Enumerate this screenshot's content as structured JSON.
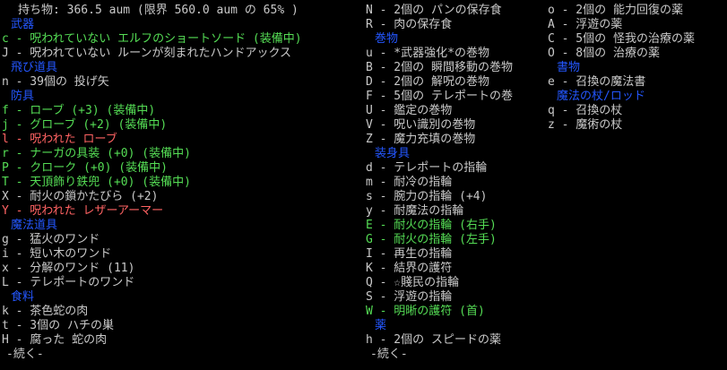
{
  "palette": {
    "background": "#000000",
    "item_text": "#c9c9c9",
    "category_header": "#2457ff",
    "equipped_item": "#55dd55",
    "cursed_item": "#ff6363"
  },
  "inventory": {
    "title": "持ち物: 366.5 aum (限界 560.0 aum の 65% )",
    "weight_current": "366.5",
    "weight_limit": "560.0",
    "weight_percent": "65%",
    "more_label": "-続く-",
    "columns": [
      {
        "name": "left",
        "lines": [
          {
            "kind": "title",
            "text": "持ち物: 366.5 aum (限界 560.0 aum の 65% )"
          },
          {
            "kind": "header",
            "text": "武器"
          },
          {
            "kind": "equipped",
            "text": "c - 呪われていない エルフのショートソード (装備中)"
          },
          {
            "kind": "item",
            "text": "J - 呪われていない ルーンが刻まれたハンドアックス"
          },
          {
            "kind": "header",
            "text": "飛び道具"
          },
          {
            "kind": "item",
            "text": "n - 39個の 投げ矢"
          },
          {
            "kind": "header",
            "text": "防具"
          },
          {
            "kind": "equipped",
            "text": "f - ローブ (+3) (装備中)"
          },
          {
            "kind": "equipped",
            "text": "j - グローブ (+2) (装備中)"
          },
          {
            "kind": "cursed",
            "text": "l - 呪われた ローブ"
          },
          {
            "kind": "equipped",
            "text": "r - ナーガの具装 (+0) (装備中)"
          },
          {
            "kind": "equipped",
            "text": "P - クローク (+0) (装備中)"
          },
          {
            "kind": "equipped",
            "text": "T - 天頂飾り鉄兜 (+0) (装備中)"
          },
          {
            "kind": "item",
            "text": "X - 耐火の鎖かたびら (+2)"
          },
          {
            "kind": "cursed",
            "text": "Y - 呪われた レザーアーマー"
          },
          {
            "kind": "header",
            "text": "魔法道具"
          },
          {
            "kind": "item",
            "text": "g - 猛火のワンド"
          },
          {
            "kind": "item",
            "text": "i - 短い木のワンド"
          },
          {
            "kind": "item",
            "text": "x - 分解のワンド (11)"
          },
          {
            "kind": "item",
            "text": "L - テレポートのワンド"
          },
          {
            "kind": "header",
            "text": "食料"
          },
          {
            "kind": "item",
            "text": "k - 茶色蛇の肉"
          },
          {
            "kind": "item",
            "text": "t - 3個の ハチの巣"
          },
          {
            "kind": "item",
            "text": "H - 腐った 蛇の肉"
          },
          {
            "kind": "more",
            "text": "-続く-"
          }
        ]
      },
      {
        "name": "middle",
        "lines": [
          {
            "kind": "item",
            "text": "N - 2個の パンの保存食"
          },
          {
            "kind": "item",
            "text": "R - 肉の保存食"
          },
          {
            "kind": "header",
            "text": "巻物"
          },
          {
            "kind": "item",
            "text": "u - *武器強化*の巻物"
          },
          {
            "kind": "item",
            "text": "B - 2個の 瞬間移動の巻物"
          },
          {
            "kind": "item",
            "text": "D - 2個の 解呪の巻物"
          },
          {
            "kind": "item",
            "text": "F - 5個の テレポートの巻"
          },
          {
            "kind": "item",
            "text": "U - 鑑定の巻物"
          },
          {
            "kind": "item",
            "text": "V - 呪い識別の巻物"
          },
          {
            "kind": "item",
            "text": "Z - 魔力充填の巻物"
          },
          {
            "kind": "header",
            "text": "装身具"
          },
          {
            "kind": "item",
            "text": "d - テレポートの指輪"
          },
          {
            "kind": "item",
            "text": "m - 耐冷の指輪"
          },
          {
            "kind": "item",
            "text": "s - 腕力の指輪 (+4)"
          },
          {
            "kind": "item",
            "text": "y - 耐魔法の指輪"
          },
          {
            "kind": "equipped",
            "text": "E - 耐火の指輪 (右手)"
          },
          {
            "kind": "equipped",
            "text": "G - 耐火の指輪 (左手)"
          },
          {
            "kind": "item",
            "text": "I - 再生の指輪"
          },
          {
            "kind": "item",
            "text": "K - 結界の護符"
          },
          {
            "kind": "item",
            "text": "Q - ☆賤民の指輪"
          },
          {
            "kind": "item",
            "text": "S - 浮遊の指輪"
          },
          {
            "kind": "equipped",
            "text": "W - 明晰の護符 (首)"
          },
          {
            "kind": "header",
            "text": "薬"
          },
          {
            "kind": "item",
            "text": "h - 2個の スピードの薬"
          },
          {
            "kind": "more",
            "text": "-続く-"
          }
        ]
      },
      {
        "name": "right",
        "lines": [
          {
            "kind": "item",
            "text": "o - 2個の 能力回復の薬"
          },
          {
            "kind": "item",
            "text": "A - 浮遊の薬"
          },
          {
            "kind": "item",
            "text": "C - 5個の 怪我の治療の薬"
          },
          {
            "kind": "item",
            "text": "O - 8個の 治療の薬"
          },
          {
            "kind": "header",
            "text": "書物"
          },
          {
            "kind": "item",
            "text": "e - 召換の魔法書"
          },
          {
            "kind": "header",
            "text": "魔法の杖/ロッド"
          },
          {
            "kind": "item",
            "text": "q - 召換の杖"
          },
          {
            "kind": "item",
            "text": "z - 魔術の杖"
          }
        ]
      }
    ]
  }
}
